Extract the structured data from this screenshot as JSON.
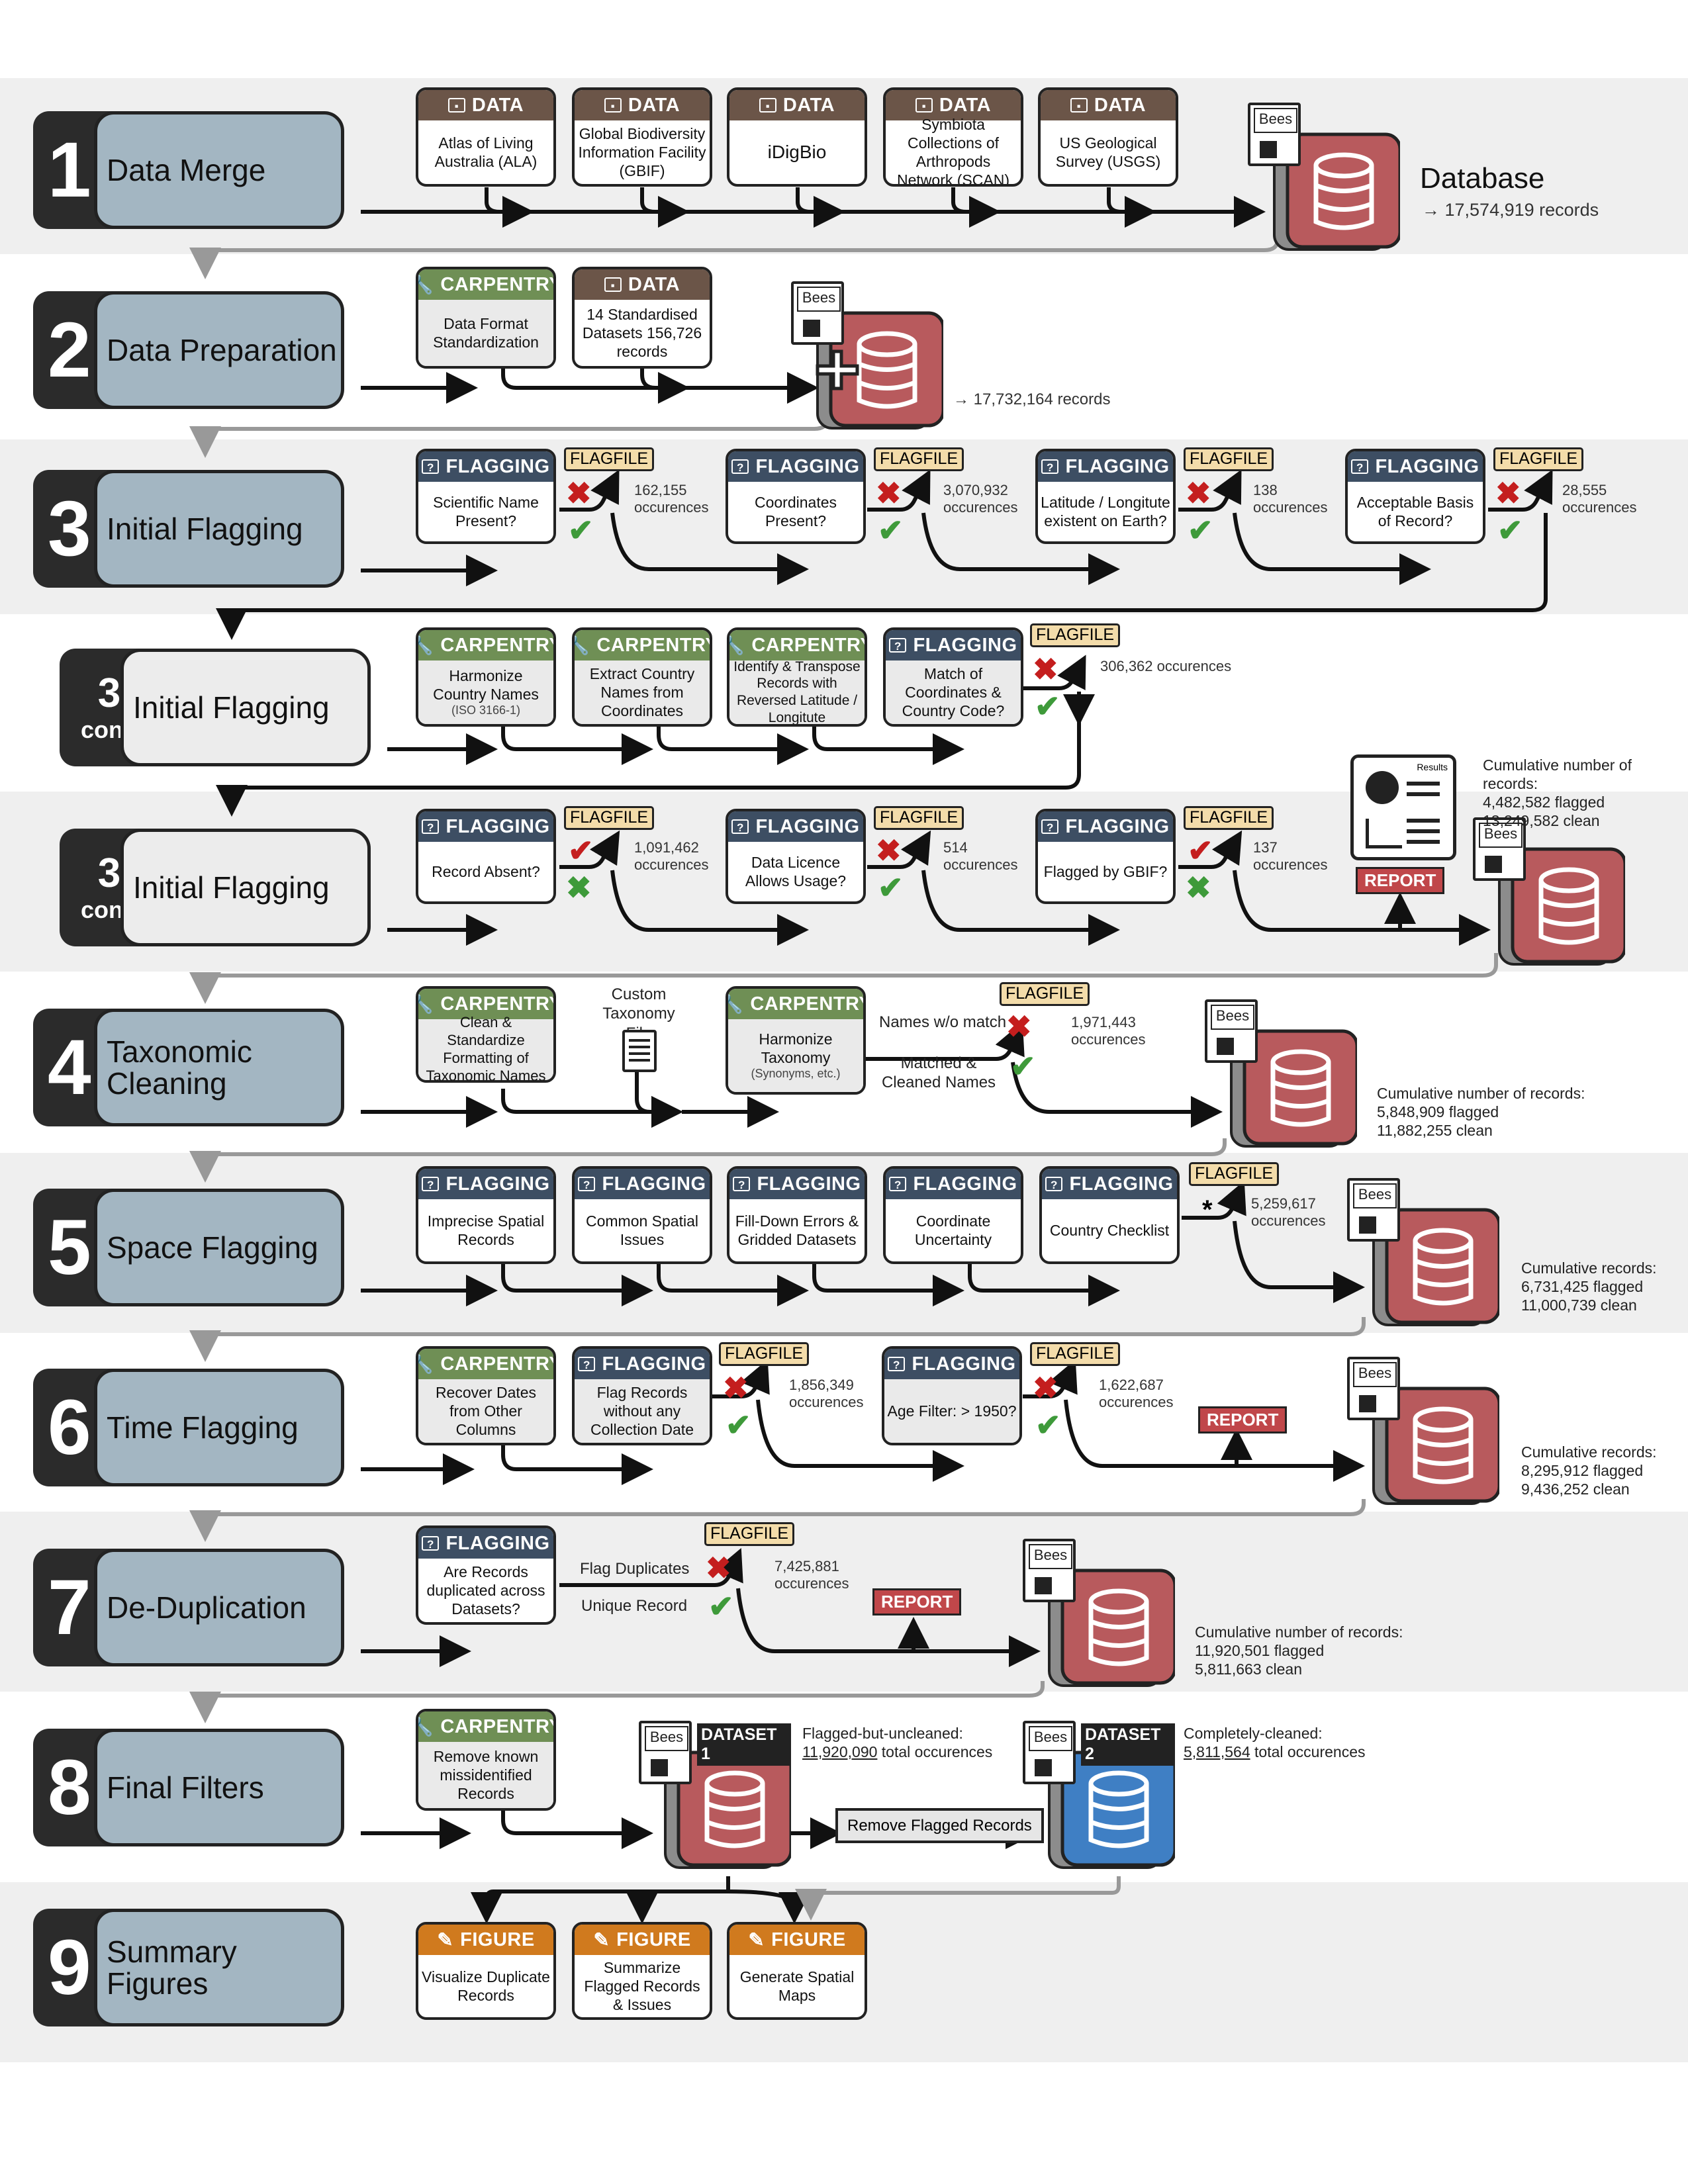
{
  "steps": {
    "s1": {
      "num": "1",
      "label": "Data Merge"
    },
    "s2": {
      "num": "2",
      "label": "Data Preparation"
    },
    "s3": {
      "num": "3",
      "label": "Initial Flagging"
    },
    "s3b": {
      "num": "3",
      "cont": "cont.",
      "label": "Initial Flagging"
    },
    "s3c": {
      "num": "3",
      "cont": "cont.",
      "label": "Initial Flagging"
    },
    "s4": {
      "num": "4",
      "label": "Taxonomic Cleaning"
    },
    "s5": {
      "num": "5",
      "label": "Space Flagging"
    },
    "s6": {
      "num": "6",
      "label": "Time Flagging"
    },
    "s7": {
      "num": "7",
      "label": "De-Duplication"
    },
    "s8": {
      "num": "8",
      "label": "Final Filters"
    },
    "s9": {
      "num": "9",
      "label": "Summary Figures"
    }
  },
  "headers": {
    "data": "DATA",
    "carpentry": "CARPENTRY",
    "flagging": "FLAGGING",
    "figure": "FIGURE",
    "flagfile": "FLAGFILE",
    "report": "REPORT",
    "bees": "Bees",
    "occurences": "occurences"
  },
  "row1": {
    "sources": [
      "Atlas of Living Australia (ALA)",
      "Global Biodiversity Information Facility (GBIF)",
      "iDigBio",
      "Symbiota Collections of Arthropods Network (SCAN)",
      "US Geological Survey (USGS)"
    ],
    "db_title": "Database",
    "db_records": "→ 17,574,919 records"
  },
  "row2": {
    "carp": "Data Format Standardization",
    "data": "14 Standardised Datasets 156,726 records",
    "records": "→ 17,732,164 records"
  },
  "row3": {
    "checks": [
      "Scientific Name Present?",
      "Coordinates Present?",
      "Latitude / Longitute existent on Earth?",
      "Acceptable Basis of Record?"
    ],
    "counts": [
      "162,155",
      "3,070,932",
      "138",
      "28,555"
    ]
  },
  "row3b": {
    "carp": [
      "Harmonize Country Names",
      "Extract Country Names from Coordinates",
      "Identify & Transpose Records with Reversed Latitude / Longitute"
    ],
    "carp_sub": "(ISO 3166-1)",
    "flag": "Match of Coordinates & Country Code?",
    "count": "306,362 occurences"
  },
  "row3c": {
    "checks": [
      "Record Absent?",
      "Data Licence Allows Usage?",
      "Flagged by GBIF?"
    ],
    "counts": [
      "1,091,462",
      "514",
      "137"
    ],
    "results": "Results",
    "cum_title": "Cumulative number of records:",
    "cum_flagged": "4,482,582 flagged",
    "cum_clean": "13,249,582 clean"
  },
  "row4": {
    "carp1": "Clean & Standardize Formatting of Taxonomic Names",
    "custom": "Custom Taxonomy File",
    "carp2": "Harmonize Taxonomy",
    "carp2_sub": "(Synonyms, etc.)",
    "nomatch": "Names w/o match",
    "matched": "Matched & Cleaned Names",
    "count": "1,971,443",
    "cum_title": "Cumulative number of records:",
    "cum_flagged": "5,848,909 flagged",
    "cum_clean": "11,882,255 clean"
  },
  "row5": {
    "checks": [
      "Imprecise Spatial Records",
      "Common Spatial Issues",
      "Fill-Down Errors & Gridded Datasets",
      "Coordinate Uncertainty",
      "Country Checklist"
    ],
    "asterisk": "*",
    "count": "5,259,617",
    "cum_title": "Cumulative records:",
    "cum_flagged": "6,731,425 flagged",
    "cum_clean": "11,000,739 clean"
  },
  "row6": {
    "carp": "Recover Dates from Other Columns",
    "flag1": "Flag Records without any Collection Date",
    "flag2": "Age Filter: > 1950?",
    "counts": [
      "1,856,349",
      "1,622,687"
    ],
    "cum_title": "Cumulative records:",
    "cum_flagged": "8,295,912 flagged",
    "cum_clean": "9,436,252 clean"
  },
  "row7": {
    "flag": "Are Records duplicated across Datasets?",
    "dup": "Flag Duplicates",
    "unique": "Unique Record",
    "count": "7,425,881",
    "cum_title": "Cumulative number of records:",
    "cum_flagged": "11,920,501 flagged",
    "cum_clean": "5,811,663 clean"
  },
  "row8": {
    "carp": "Remove known missidentified Records",
    "ds1": "DATASET 1",
    "ds2": "DATASET 2",
    "ds1_title": "Flagged-but-uncleaned:",
    "ds1_num": "11,920,090",
    "ds1_rest": "total occurences",
    "ds2_title": "Completely-cleaned:",
    "ds2_num": "5,811,564",
    "ds2_rest": "total occurences",
    "remove": "Remove Flagged Records"
  },
  "row9": {
    "figs": [
      "Visualize Duplicate Records",
      "Summarize Flagged Records & Issues",
      "Generate Spatial Maps"
    ]
  },
  "colors": {
    "step_label": "#a3b6c2",
    "db_red": "#b85a5d",
    "db_blue": "#3f7fc4",
    "flag_header": "#3d4e63",
    "carp_header": "#6f8f55",
    "data_header": "#6b5548",
    "fig_header": "#d07a1e",
    "flagfile_tag": "#f3dcaa"
  }
}
